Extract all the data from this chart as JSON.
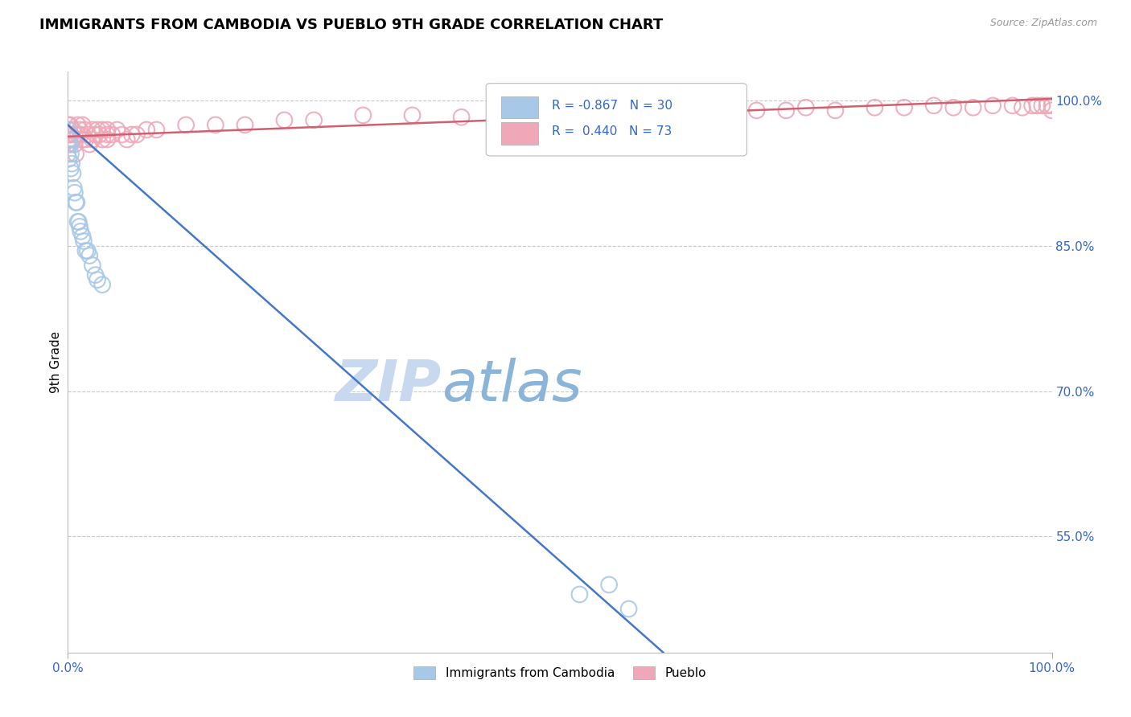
{
  "title": "IMMIGRANTS FROM CAMBODIA VS PUEBLO 9TH GRADE CORRELATION CHART",
  "ylabel": "9th Grade",
  "source_text": "Source: ZipAtlas.com",
  "xlim": [
    0.0,
    1.0
  ],
  "ylim": [
    0.43,
    1.03
  ],
  "x_tick_labels": [
    "0.0%",
    "100.0%"
  ],
  "y_tick_labels": [
    "55.0%",
    "70.0%",
    "85.0%",
    "100.0%"
  ],
  "y_tick_values": [
    0.55,
    0.7,
    0.85,
    1.0
  ],
  "grid_color": "#c8c8c8",
  "background_color": "#ffffff",
  "blue_color": "#a8c8e8",
  "pink_color": "#f0a8b8",
  "blue_line_color": "#4477cc",
  "pink_line_color": "#d06070",
  "legend_r_blue": "-0.867",
  "legend_n_blue": "30",
  "legend_r_pink": "0.440",
  "legend_n_pink": "73",
  "legend_label_blue": "Immigrants from Cambodia",
  "legend_label_pink": "Pueblo",
  "blue_scatter_x": [
    0.0,
    0.0,
    0.0,
    0.001,
    0.001,
    0.002,
    0.003,
    0.003,
    0.004,
    0.005,
    0.006,
    0.007,
    0.008,
    0.009,
    0.01,
    0.011,
    0.012,
    0.013,
    0.015,
    0.016,
    0.018,
    0.02,
    0.022,
    0.025,
    0.028,
    0.03,
    0.035,
    0.52,
    0.55,
    0.57
  ],
  "blue_scatter_y": [
    0.97,
    0.955,
    0.945,
    0.96,
    0.94,
    0.955,
    0.945,
    0.93,
    0.935,
    0.925,
    0.91,
    0.905,
    0.895,
    0.895,
    0.875,
    0.875,
    0.87,
    0.865,
    0.86,
    0.855,
    0.845,
    0.845,
    0.84,
    0.83,
    0.82,
    0.815,
    0.81,
    0.49,
    0.5,
    0.475
  ],
  "pink_scatter_x": [
    0.0,
    0.0,
    0.0,
    0.001,
    0.001,
    0.002,
    0.003,
    0.003,
    0.005,
    0.005,
    0.007,
    0.007,
    0.008,
    0.01,
    0.01,
    0.012,
    0.013,
    0.015,
    0.015,
    0.017,
    0.018,
    0.02,
    0.022,
    0.025,
    0.025,
    0.028,
    0.03,
    0.032,
    0.035,
    0.035,
    0.04,
    0.04,
    0.04,
    0.045,
    0.05,
    0.055,
    0.06,
    0.065,
    0.07,
    0.08,
    0.09,
    0.12,
    0.15,
    0.18,
    0.22,
    0.25,
    0.3,
    0.35,
    0.4,
    0.45,
    0.55,
    0.6,
    0.63,
    0.65,
    0.68,
    0.7,
    0.73,
    0.75,
    0.78,
    0.82,
    0.85,
    0.88,
    0.9,
    0.92,
    0.94,
    0.96,
    0.97,
    0.98,
    0.985,
    0.99,
    0.995,
    1.0,
    1.0
  ],
  "pink_scatter_y": [
    0.975,
    0.965,
    0.955,
    0.97,
    0.96,
    0.975,
    0.965,
    0.955,
    0.97,
    0.96,
    0.965,
    0.955,
    0.945,
    0.975,
    0.965,
    0.97,
    0.965,
    0.975,
    0.96,
    0.97,
    0.96,
    0.965,
    0.955,
    0.97,
    0.96,
    0.965,
    0.97,
    0.965,
    0.97,
    0.96,
    0.97,
    0.965,
    0.96,
    0.965,
    0.97,
    0.965,
    0.96,
    0.965,
    0.965,
    0.97,
    0.97,
    0.975,
    0.975,
    0.975,
    0.98,
    0.98,
    0.985,
    0.985,
    0.983,
    0.988,
    0.988,
    0.99,
    0.99,
    0.988,
    0.99,
    0.99,
    0.99,
    0.993,
    0.99,
    0.993,
    0.993,
    0.995,
    0.993,
    0.993,
    0.995,
    0.995,
    0.993,
    0.995,
    0.995,
    0.995,
    0.995,
    0.995,
    0.99
  ],
  "blue_line_x": [
    0.0,
    0.605
  ],
  "blue_line_y": [
    0.975,
    0.43
  ],
  "pink_line_x": [
    0.0,
    1.0
  ],
  "pink_line_y": [
    0.963,
    1.002
  ],
  "watermark_zip": "ZIP",
  "watermark_atlas": "atlas",
  "watermark_color_zip": "#c8d8ee",
  "watermark_color_atlas": "#8ab4d8"
}
